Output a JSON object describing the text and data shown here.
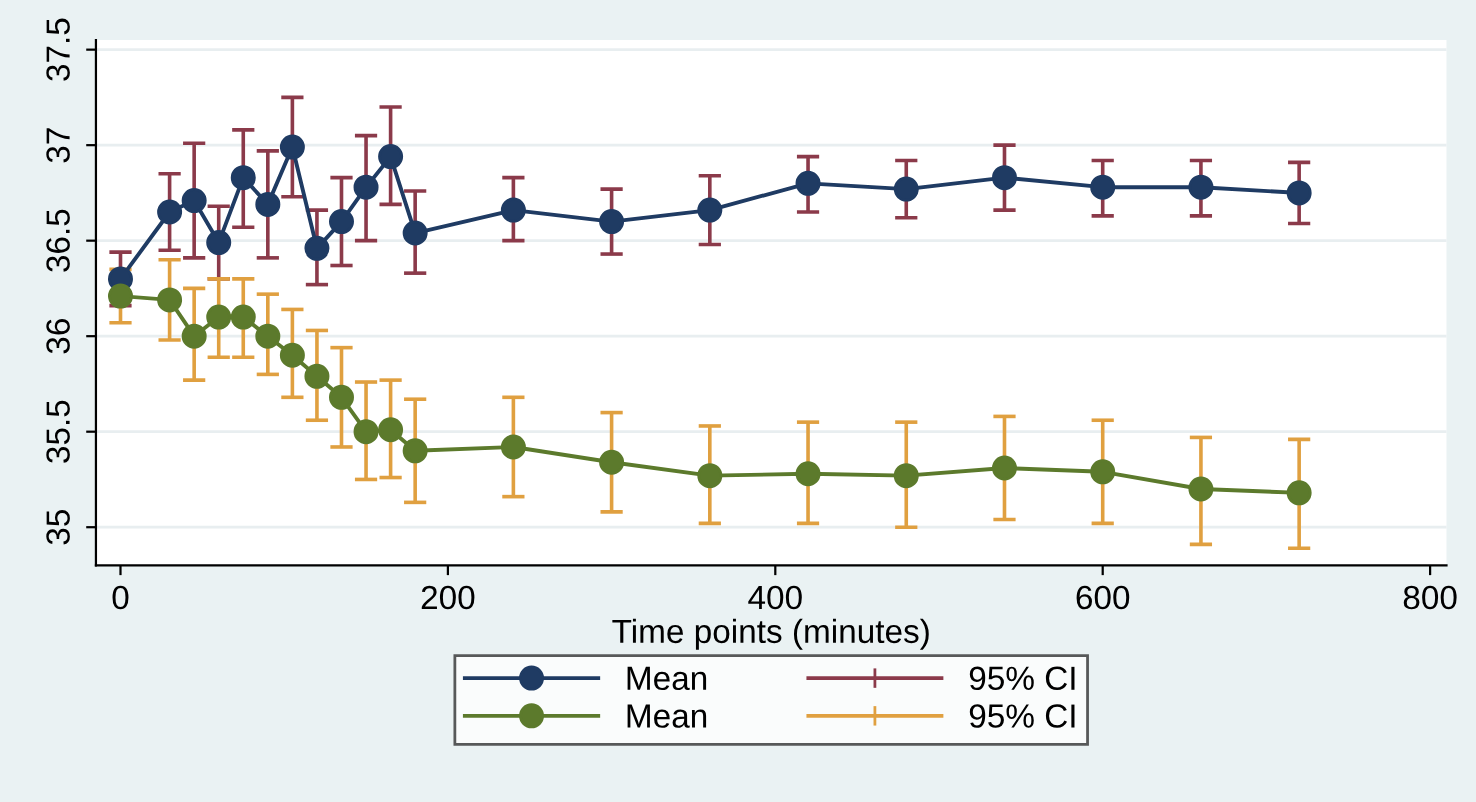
{
  "chart_data": {
    "type": "line",
    "xlabel": "Time points (minutes)",
    "x": [
      0,
      30,
      45,
      60,
      75,
      90,
      105,
      120,
      135,
      150,
      165,
      180,
      240,
      300,
      360,
      420,
      480,
      540,
      600,
      660,
      720
    ],
    "series": [
      {
        "name": "Mean",
        "color": "#1f3b63",
        "values": [
          36.3,
          36.65,
          36.71,
          36.49,
          36.83,
          36.69,
          36.99,
          36.46,
          36.6,
          36.78,
          36.94,
          36.54,
          36.66,
          36.6,
          36.66,
          36.8,
          36.77,
          36.83,
          36.78,
          36.78,
          36.75
        ],
        "errors": [
          [
            36.16,
            36.44
          ],
          [
            36.45,
            36.85
          ],
          [
            36.41,
            37.01
          ],
          [
            36.3,
            36.68
          ],
          [
            36.57,
            37.08
          ],
          [
            36.41,
            36.97
          ],
          [
            36.73,
            37.25
          ],
          [
            36.27,
            36.66
          ],
          [
            36.37,
            36.83
          ],
          [
            36.5,
            37.05
          ],
          [
            36.69,
            37.2
          ],
          [
            36.33,
            36.76
          ],
          [
            36.5,
            36.83
          ],
          [
            36.43,
            36.77
          ],
          [
            36.48,
            36.84
          ],
          [
            36.65,
            36.94
          ],
          [
            36.62,
            36.92
          ],
          [
            36.66,
            37.0
          ],
          [
            36.63,
            36.92
          ],
          [
            36.63,
            36.92
          ],
          [
            36.59,
            36.91
          ]
        ]
      },
      {
        "name": "95% CI",
        "color": "#8b3a4a",
        "values": [
          null,
          null,
          null,
          null,
          null,
          null,
          null,
          null,
          null,
          null,
          null,
          null,
          null,
          null,
          null,
          null,
          null,
          null,
          null,
          null,
          null
        ]
      },
      {
        "name": "Mean",
        "color": "#5c7a2c",
        "values": [
          36.21,
          36.19,
          36.0,
          36.1,
          36.1,
          36.0,
          35.9,
          35.79,
          35.68,
          35.5,
          35.51,
          35.4,
          35.42,
          35.34,
          35.27,
          35.28,
          35.27,
          35.31,
          35.29,
          35.2,
          35.18
        ],
        "errors": [
          [
            36.07,
            36.35
          ],
          [
            35.98,
            36.4
          ],
          [
            35.77,
            36.25
          ],
          [
            35.89,
            36.3
          ],
          [
            35.89,
            36.3
          ],
          [
            35.8,
            36.22
          ],
          [
            35.68,
            36.14
          ],
          [
            35.56,
            36.03
          ],
          [
            35.42,
            35.94
          ],
          [
            35.25,
            35.76
          ],
          [
            35.26,
            35.77
          ],
          [
            35.13,
            35.67
          ],
          [
            35.16,
            35.68
          ],
          [
            35.08,
            35.6
          ],
          [
            35.02,
            35.53
          ],
          [
            35.02,
            35.55
          ],
          [
            35.0,
            35.55
          ],
          [
            35.04,
            35.58
          ],
          [
            35.02,
            35.56
          ],
          [
            34.91,
            35.47
          ],
          [
            34.89,
            35.46
          ]
        ]
      },
      {
        "name": "95% CI",
        "color": "#e0a040",
        "values": [
          null,
          null,
          null,
          null,
          null,
          null,
          null,
          null,
          null,
          null,
          null,
          null,
          null,
          null,
          null,
          null,
          null,
          null,
          null,
          null,
          null
        ]
      }
    ],
    "xlim": [
      -15,
      810
    ],
    "xticks": [
      0,
      200,
      400,
      600,
      800
    ],
    "ylim": [
      34.8,
      37.55
    ],
    "yticks": [
      35,
      35.5,
      36,
      36.5,
      37,
      37.5
    ],
    "grid": "y",
    "legend": "bottom",
    "marker": "circle",
    "line_style": "solid"
  }
}
